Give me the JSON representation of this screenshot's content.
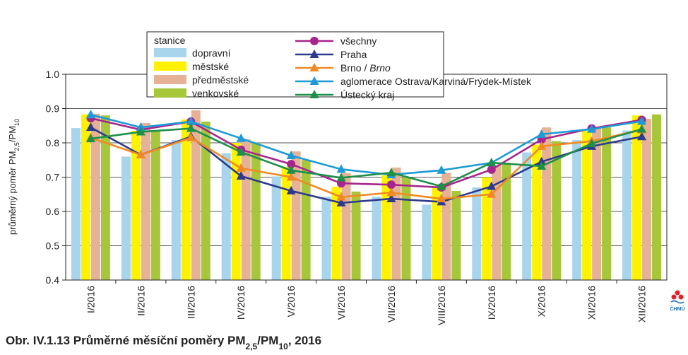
{
  "caption": {
    "prefix": "Obr. IV.1.13  Průměrné měsíční poměry PM",
    "sub1": "2,5",
    "mid": "/PM",
    "sub2": "10",
    "suffix": ", 2016"
  },
  "logo_text": "ČHMÚ",
  "chart_data": {
    "type": "bar",
    "title": "",
    "ylabel": {
      "prefix": "průměrný poměr PM",
      "sub1": "2,5",
      "mid": "/PM",
      "sub2": "10"
    },
    "xlabel": "",
    "ylim": [
      0.4,
      1.0
    ],
    "yticks": [
      "0.4",
      "0.5",
      "0.6",
      "0.7",
      "0.8",
      "0.9",
      "1.0"
    ],
    "grid": true,
    "legend_position": "top-center",
    "categories": [
      "I/2016",
      "II/2016",
      "III/2016",
      "IV/2016",
      "V/2016",
      "VI/2016",
      "VII/2016",
      "VIII/2016",
      "IX/2016",
      "X/2016",
      "XI/2016",
      "XII/2016"
    ],
    "bar_legend_title": "stanice",
    "bar_series": [
      {
        "name": "dopravní",
        "color": "#a8d4ec",
        "values": [
          0.843,
          0.76,
          0.808,
          0.77,
          0.702,
          0.643,
          0.643,
          0.62,
          0.67,
          0.772,
          0.808,
          0.836
        ]
      },
      {
        "name": "městské",
        "color": "#fff200",
        "values": [
          0.883,
          0.835,
          0.868,
          0.8,
          0.73,
          0.672,
          0.705,
          0.668,
          0.7,
          0.795,
          0.835,
          0.88
        ]
      },
      {
        "name": "předměstské",
        "color": "#e6b296",
        "values": [
          0.885,
          0.858,
          0.895,
          0.81,
          0.775,
          0.712,
          0.728,
          0.713,
          0.735,
          0.845,
          0.845,
          0.87
        ]
      },
      {
        "name": "venkovské",
        "color": "#a6c73a",
        "values": [
          0.88,
          0.835,
          0.862,
          0.8,
          0.75,
          0.658,
          0.7,
          0.66,
          0.742,
          0.805,
          0.845,
          0.883
        ]
      }
    ],
    "line_series": [
      {
        "name": "všechny",
        "color": "#a6268c",
        "marker": "circle",
        "values": [
          0.872,
          0.838,
          0.862,
          0.78,
          0.738,
          0.682,
          0.678,
          0.67,
          0.722,
          0.81,
          0.842,
          0.867
        ]
      },
      {
        "name": "Praha",
        "color": "#2e3a8c",
        "marker": "triangle",
        "values": [
          0.845,
          0.765,
          0.818,
          0.703,
          0.66,
          0.625,
          0.637,
          0.628,
          0.673,
          0.745,
          0.79,
          0.818
        ]
      },
      {
        "name_plain": "Brno / ",
        "name_italic": "Brno",
        "color": "#f08a24",
        "marker": "triangle",
        "values": [
          0.815,
          0.765,
          0.815,
          0.726,
          0.7,
          0.642,
          0.655,
          0.637,
          0.65,
          0.79,
          0.805,
          0.838
        ]
      },
      {
        "name": "aglomerace Ostrava/Karviná/Frýdek-Místek",
        "color": "#1e9ad6",
        "marker": "triangle",
        "values": [
          0.882,
          0.845,
          0.862,
          0.813,
          0.763,
          0.723,
          0.707,
          0.72,
          0.742,
          0.825,
          0.84,
          0.863
        ]
      },
      {
        "name": "Ústecký kraj",
        "color": "#1f8f4a",
        "marker": "triangle",
        "values": [
          0.812,
          0.832,
          0.842,
          0.773,
          0.72,
          0.698,
          0.713,
          0.673,
          0.742,
          0.732,
          0.798,
          0.84
        ]
      }
    ]
  }
}
